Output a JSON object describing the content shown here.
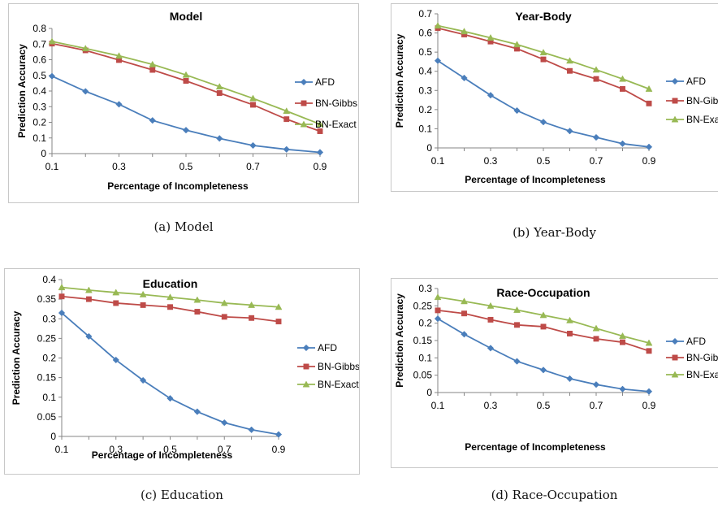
{
  "chart_data": [
    {
      "type": "line",
      "title": "Model",
      "xlabel": "Percentage of Incompleteness",
      "ylabel": "Prediction Accuracy",
      "caption": "(a) Model",
      "x": [
        0.1,
        0.2,
        0.3,
        0.4,
        0.5,
        0.6,
        0.7,
        0.8,
        0.9
      ],
      "x_ticks": [
        "0.1",
        "0.3",
        "0.5",
        "0.7",
        "0.9"
      ],
      "y_ticks": [
        "0",
        "0.1",
        "0.2",
        "0.3",
        "0.4",
        "0.5",
        "0.6",
        "0.7",
        "0.8"
      ],
      "ylim": [
        0,
        0.8
      ],
      "grid": false,
      "legend": "right",
      "series": [
        {
          "name": "AFD",
          "color": "#4a7ebb",
          "marker": "diamond",
          "values": [
            0.495,
            0.398,
            0.315,
            0.212,
            0.15,
            0.097,
            0.052,
            0.027,
            0.008
          ]
        },
        {
          "name": "BN-Gibbs",
          "color": "#be4b48",
          "marker": "square",
          "values": [
            0.703,
            0.66,
            0.598,
            0.535,
            0.465,
            0.387,
            0.312,
            0.22,
            0.143
          ]
        },
        {
          "name": "BN-Exact",
          "color": "#98b954",
          "marker": "triangle",
          "values": [
            0.717,
            0.672,
            0.625,
            0.57,
            0.503,
            0.428,
            0.353,
            0.272,
            0.188
          ]
        }
      ]
    },
    {
      "type": "line",
      "title": "Year-Body",
      "xlabel": "Percentage of Incompleteness",
      "ylabel": "Prediction Accuracy",
      "caption": "(b) Year-Body",
      "x": [
        0.1,
        0.2,
        0.3,
        0.4,
        0.5,
        0.6,
        0.7,
        0.8,
        0.9
      ],
      "x_ticks": [
        "0.1",
        "0.3",
        "0.5",
        "0.7",
        "0.9"
      ],
      "y_ticks": [
        "0",
        "0.1",
        "0.2",
        "0.3",
        "0.4",
        "0.5",
        "0.6",
        "0.7"
      ],
      "ylim": [
        0,
        0.7
      ],
      "grid": false,
      "legend": "right",
      "series": [
        {
          "name": "AFD",
          "color": "#4a7ebb",
          "marker": "diamond",
          "values": [
            0.455,
            0.365,
            0.275,
            0.195,
            0.135,
            0.088,
            0.055,
            0.022,
            0.005
          ]
        },
        {
          "name": "BN-Gibbs",
          "color": "#be4b48",
          "marker": "square",
          "values": [
            0.625,
            0.592,
            0.555,
            0.518,
            0.462,
            0.402,
            0.36,
            0.308,
            0.232
          ]
        },
        {
          "name": "BN-Exact",
          "color": "#98b954",
          "marker": "triangle",
          "values": [
            0.638,
            0.608,
            0.575,
            0.54,
            0.498,
            0.455,
            0.408,
            0.36,
            0.308
          ]
        }
      ]
    },
    {
      "type": "line",
      "title": "Education",
      "xlabel": "Percentage of Incompleteness",
      "ylabel": "Prediction Accuracy",
      "caption": "(c) Education",
      "x": [
        0.1,
        0.2,
        0.3,
        0.4,
        0.5,
        0.6,
        0.7,
        0.8,
        0.9
      ],
      "x_ticks": [
        "0.1",
        "0.3",
        "0.5",
        "0.7",
        "0.9"
      ],
      "y_ticks": [
        "0",
        "0.05",
        "0.1",
        "0.15",
        "0.2",
        "0.25",
        "0.3",
        "0.35",
        "0.4"
      ],
      "ylim": [
        0,
        0.4
      ],
      "grid": false,
      "legend": "right",
      "series": [
        {
          "name": "AFD",
          "color": "#4a7ebb",
          "marker": "diamond",
          "values": [
            0.315,
            0.255,
            0.195,
            0.143,
            0.097,
            0.063,
            0.035,
            0.017,
            0.005
          ]
        },
        {
          "name": "BN-Gibbs",
          "color": "#be4b48",
          "marker": "square",
          "values": [
            0.357,
            0.35,
            0.34,
            0.335,
            0.33,
            0.318,
            0.305,
            0.302,
            0.293
          ]
        },
        {
          "name": "BN-Exact",
          "color": "#98b954",
          "marker": "triangle",
          "values": [
            0.38,
            0.373,
            0.367,
            0.362,
            0.355,
            0.348,
            0.34,
            0.335,
            0.33
          ]
        }
      ]
    },
    {
      "type": "line",
      "title": "Race-Occupation",
      "xlabel": "Percentage of Incompleteness",
      "ylabel": "Prediction Accuracy",
      "caption": "(d) Race-Occupation",
      "x": [
        0.1,
        0.2,
        0.3,
        0.4,
        0.5,
        0.6,
        0.7,
        0.8,
        0.9
      ],
      "x_ticks": [
        "0.1",
        "0.3",
        "0.5",
        "0.7",
        "0.9"
      ],
      "y_ticks": [
        "0",
        "0.05",
        "0.1",
        "0.15",
        "0.2",
        "0.25",
        "0.3"
      ],
      "ylim": [
        0,
        0.3
      ],
      "grid": false,
      "legend": "right",
      "series": [
        {
          "name": "AFD",
          "color": "#4a7ebb",
          "marker": "diamond",
          "values": [
            0.213,
            0.168,
            0.128,
            0.09,
            0.065,
            0.04,
            0.023,
            0.01,
            0.003
          ]
        },
        {
          "name": "BN-Gibbs",
          "color": "#be4b48",
          "marker": "square",
          "values": [
            0.237,
            0.228,
            0.21,
            0.195,
            0.19,
            0.17,
            0.155,
            0.145,
            0.12
          ]
        },
        {
          "name": "BN-Exact",
          "color": "#98b954",
          "marker": "triangle",
          "values": [
            0.275,
            0.263,
            0.25,
            0.238,
            0.223,
            0.208,
            0.185,
            0.163,
            0.143
          ]
        }
      ]
    }
  ]
}
